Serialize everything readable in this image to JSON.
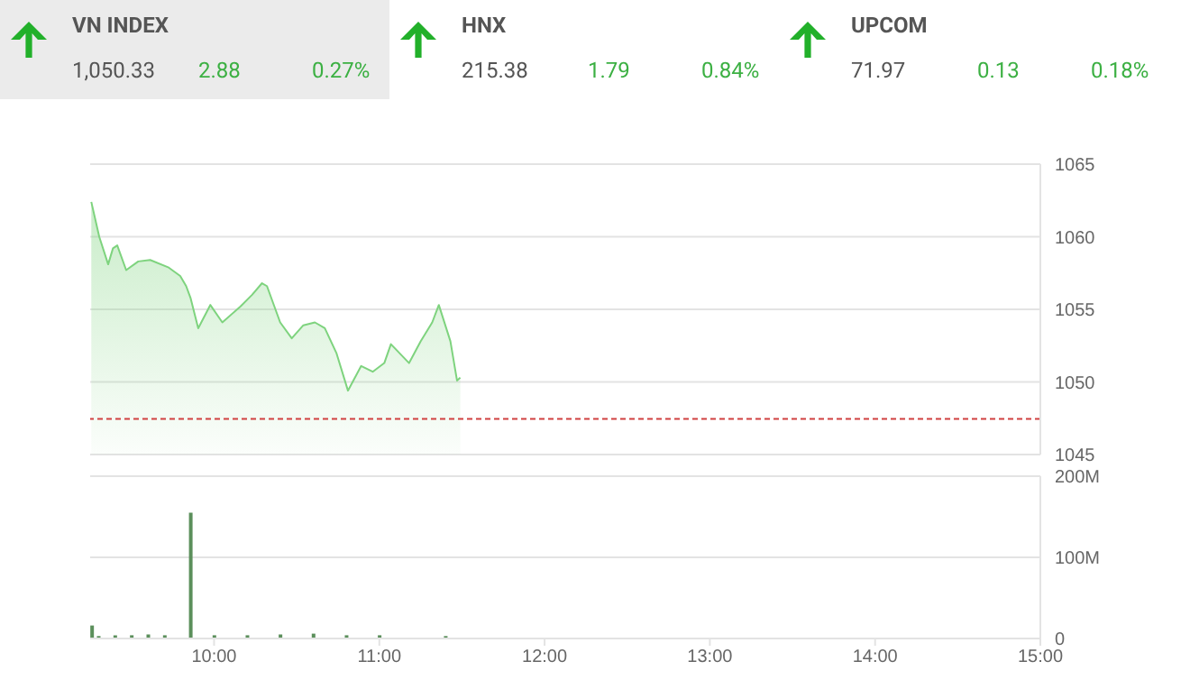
{
  "chart_data": [
    {
      "type": "other",
      "title": "VN INDEX",
      "annotations": [
        "1,050.33",
        "2.88",
        "0.27%"
      ]
    },
    {
      "type": "other",
      "title": "HNX",
      "annotations": [
        "215.38",
        "1.79",
        "0.84%"
      ]
    },
    {
      "type": "other",
      "title": "UPCOM",
      "annotations": [
        "71.97",
        "0.13",
        "0.18%"
      ]
    },
    {
      "type": "area",
      "x": [
        9.257,
        9.305,
        9.359,
        9.388,
        9.414,
        9.468,
        9.541,
        9.613,
        9.722,
        9.795,
        9.831,
        9.857,
        9.904,
        9.977,
        10.05,
        10.16,
        10.23,
        10.29,
        10.32,
        10.4,
        10.47,
        10.54,
        10.61,
        10.67,
        10.74,
        10.81,
        10.89,
        10.96,
        11.03,
        11.07,
        11.18,
        11.25,
        11.32,
        11.36,
        11.43,
        11.47,
        11.49
      ],
      "series": [
        {
          "color": "#7ed37e",
          "values": [
            1062.4,
            1060.0,
            1058.1,
            1059.2,
            1059.4,
            1057.7,
            1058.3,
            1058.4,
            1057.9,
            1057.3,
            1056.6,
            1055.8,
            1053.7,
            1055.3,
            1054.1,
            1055.2,
            1056.0,
            1056.8,
            1056.6,
            1054.1,
            1053.0,
            1053.9,
            1054.1,
            1053.7,
            1052.0,
            1049.4,
            1051.1,
            1050.7,
            1051.3,
            1052.6,
            1051.3,
            1052.8,
            1054.1,
            1055.3,
            1052.8,
            1050.1,
            1050.3
          ]
        }
      ],
      "xlim": [
        9.25,
        15
      ],
      "ylim": [
        1045,
        1065
      ],
      "yticks": [
        1045,
        1050,
        1055,
        1060,
        1065
      ],
      "grid": "y",
      "tick_labels": "y",
      "ref_lines": [
        {
          "axis": "y",
          "value": 1047.45,
          "color": "#d04040",
          "line_style": "dashed"
        }
      ]
    },
    {
      "type": "bar",
      "x": [
        9.26,
        9.3,
        9.4,
        9.5,
        9.6,
        9.7,
        9.857,
        10.0,
        10.2,
        10.4,
        10.6,
        10.8,
        11.0,
        11.4
      ],
      "series": [
        {
          "color": "#5b8f5b",
          "values": [
            16,
            3,
            4,
            4,
            5,
            4,
            155,
            4,
            4,
            5,
            6,
            4,
            4,
            3
          ]
        }
      ],
      "xlim": [
        9.25,
        15
      ],
      "xticks": [
        {
          "value": 10,
          "label": "10:00"
        },
        {
          "value": 11,
          "label": "11:00"
        },
        {
          "value": 12,
          "label": "12:00"
        },
        {
          "value": 13,
          "label": "13:00"
        },
        {
          "value": 14,
          "label": "14:00"
        },
        {
          "value": 15,
          "label": "15:00"
        }
      ],
      "ylim": [
        0,
        200
      ],
      "yticks": [
        0,
        {
          "value": 100,
          "label": "100M"
        },
        {
          "value": 200,
          "label": "200M"
        }
      ],
      "grid": "y"
    }
  ]
}
